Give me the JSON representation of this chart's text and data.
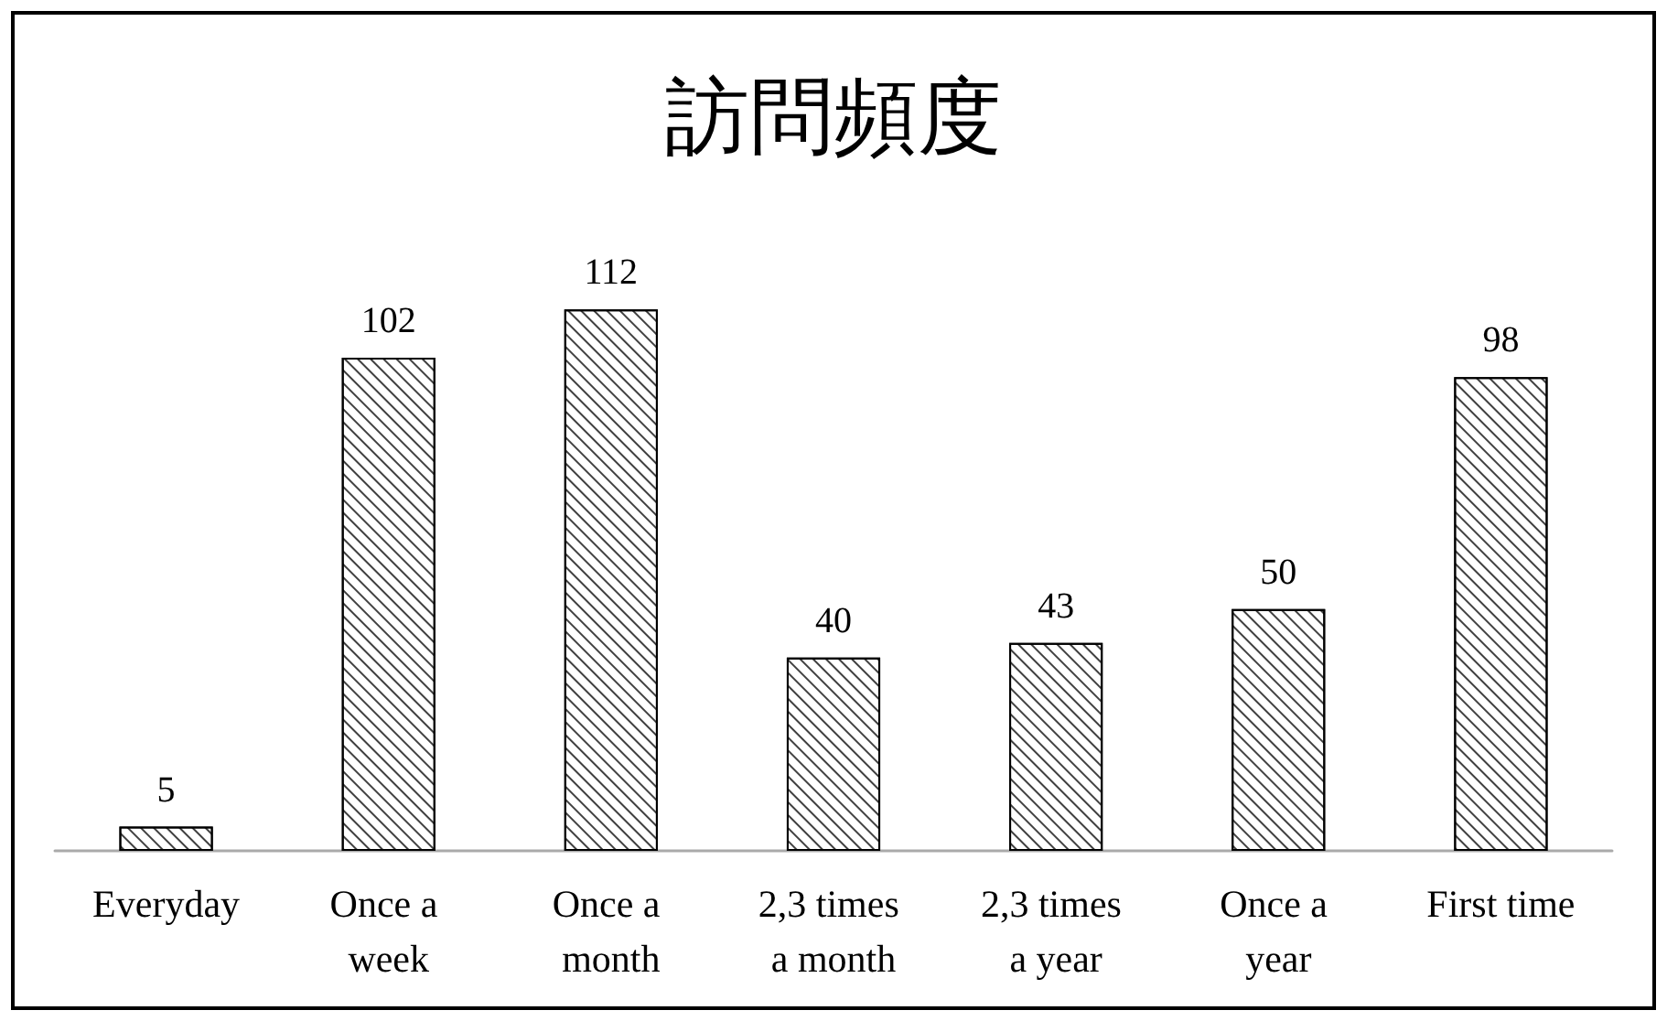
{
  "chart_data": {
    "type": "bar",
    "title": "訪問頻度",
    "categories": [
      "Everyday",
      "Once a week",
      "Once a month",
      "2,3 times a month",
      "2,3 times a year",
      "Once a year",
      "First time"
    ],
    "values": [
      5,
      102,
      112,
      40,
      43,
      50,
      98
    ],
    "color": "#ffffff",
    "data_labels": true
  }
}
